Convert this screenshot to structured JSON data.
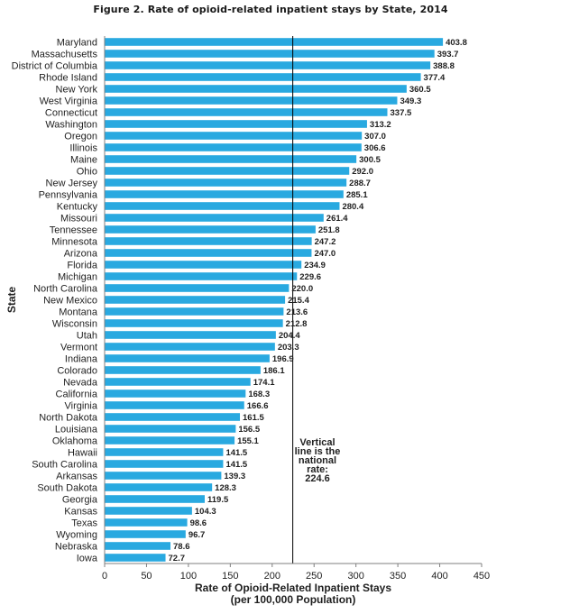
{
  "chart_data": {
    "type": "bar",
    "orientation": "horizontal",
    "title": "Figure 2. Rate of opioid-related inpatient stays by State, 2014",
    "xlabel": [
      "Rate of Opioid-Related Inpatient Stays",
      "(per 100,000 Population)"
    ],
    "ylabel": "State",
    "xlim": [
      0,
      450
    ],
    "xticks": [
      0,
      50,
      100,
      150,
      200,
      250,
      300,
      350,
      400,
      450
    ],
    "grid": false,
    "bar_color": "#29a9e0",
    "categories": [
      "Maryland",
      "Massachusetts",
      "District of Columbia",
      "Rhode Island",
      "New York",
      "West Virginia",
      "Connecticut",
      "Washington",
      "Oregon",
      "Illinois",
      "Maine",
      "Ohio",
      "New Jersey",
      "Pennsylvania",
      "Kentucky",
      "Missouri",
      "Tennessee",
      "Minnesota",
      "Arizona",
      "Florida",
      "Michigan",
      "North Carolina",
      "New Mexico",
      "Montana",
      "Wisconsin",
      "Utah",
      "Vermont",
      "Indiana",
      "Colorado",
      "Nevada",
      "California",
      "Virginia",
      "North Dakota",
      "Louisiana",
      "Oklahoma",
      "Hawaii",
      "South Carolina",
      "Arkansas",
      "South Dakota",
      "Georgia",
      "Kansas",
      "Texas",
      "Wyoming",
      "Nebraska",
      "Iowa"
    ],
    "values": [
      403.8,
      393.7,
      388.8,
      377.4,
      360.5,
      349.3,
      337.5,
      313.2,
      307.0,
      306.6,
      300.5,
      292.0,
      288.7,
      285.1,
      280.4,
      261.4,
      251.8,
      247.2,
      247.0,
      234.9,
      229.6,
      220.0,
      215.4,
      213.6,
      212.8,
      204.4,
      203.3,
      196.9,
      186.1,
      174.1,
      168.3,
      166.6,
      161.5,
      156.5,
      155.1,
      141.5,
      141.5,
      139.3,
      128.3,
      119.5,
      104.3,
      98.6,
      96.7,
      78.6,
      72.7
    ],
    "value_labels": [
      "403.8",
      "393.7",
      "388.8",
      "377.4",
      "360.5",
      "349.3",
      "337.5",
      "313.2",
      "307.0",
      "306.6",
      "300.5",
      "292.0",
      "288.7",
      "285.1",
      "280.4",
      "261.4",
      "251.8",
      "247.2",
      "247.0",
      "234.9",
      "229.6",
      "220.0",
      "215.4",
      "213.6",
      "212.8",
      "204.4",
      "203.3",
      "196.9",
      "186.1",
      "174.1",
      "168.3",
      "166.6",
      "161.5",
      "156.5",
      "155.1",
      "141.5",
      "141.5",
      "139.3",
      "128.3",
      "119.5",
      "104.3",
      "98.6",
      "96.7",
      "78.6",
      "72.7"
    ],
    "reference_line": {
      "value": 224.6,
      "color": "#000000",
      "annotation": [
        "Vertical",
        "line is the",
        "national",
        "rate:",
        "224.6"
      ]
    }
  }
}
